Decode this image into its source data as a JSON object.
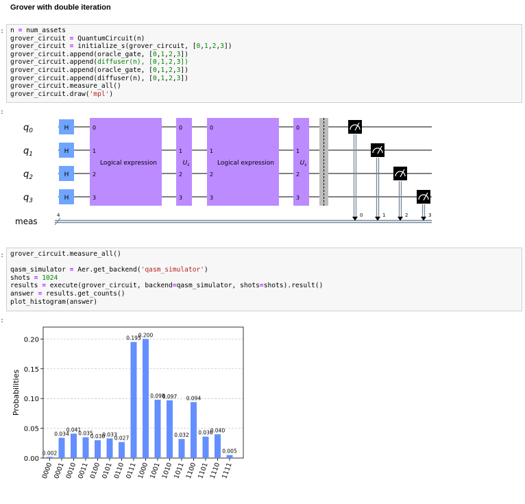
{
  "heading": "Grover with double iteration",
  "prompts": {
    "in": ":",
    "out": ":"
  },
  "cell1": {
    "lines": [
      [
        {
          "t": "n "
        },
        {
          "t": "=",
          "c": "op"
        },
        {
          "t": " num_assets"
        }
      ],
      [
        {
          "t": "grover_circuit "
        },
        {
          "t": "=",
          "c": "op"
        },
        {
          "t": " QuantumCircuit(n)"
        }
      ],
      [
        {
          "t": "grover_circuit "
        },
        {
          "t": "=",
          "c": "op"
        },
        {
          "t": " initialize_s(grover_circuit, ["
        },
        {
          "t": "0",
          "c": "num"
        },
        {
          "t": ","
        },
        {
          "t": "1",
          "c": "num"
        },
        {
          "t": ","
        },
        {
          "t": "2",
          "c": "num"
        },
        {
          "t": ","
        },
        {
          "t": "3",
          "c": "num"
        },
        {
          "t": "])"
        }
      ],
      [
        {
          "t": "grover_circuit.append(oracle_gate, ["
        },
        {
          "t": "0",
          "c": "num"
        },
        {
          "t": ","
        },
        {
          "t": "1",
          "c": "num"
        },
        {
          "t": ","
        },
        {
          "t": "2",
          "c": "num"
        },
        {
          "t": ","
        },
        {
          "t": "3",
          "c": "num"
        },
        {
          "t": "])"
        }
      ],
      [
        {
          "t": "grover_circuit.append("
        },
        {
          "t": "diffuser(n), [0,1,2,3])",
          "c": "kw"
        }
      ],
      [
        {
          "t": "grover_circuit.append(oracle_gate, ["
        },
        {
          "t": "0",
          "c": "num"
        },
        {
          "t": ","
        },
        {
          "t": "1",
          "c": "num"
        },
        {
          "t": ","
        },
        {
          "t": "2",
          "c": "num"
        },
        {
          "t": ","
        },
        {
          "t": "3",
          "c": "num"
        },
        {
          "t": "])"
        }
      ],
      [
        {
          "t": "grover_circuit.append(diffuser(n), ["
        },
        {
          "t": "0",
          "c": "num"
        },
        {
          "t": ","
        },
        {
          "t": "1",
          "c": "num"
        },
        {
          "t": ","
        },
        {
          "t": "2",
          "c": "num"
        },
        {
          "t": ","
        },
        {
          "t": "3",
          "c": "num"
        },
        {
          "t": "])"
        }
      ],
      [
        {
          "t": "grover_circuit.measure_all()"
        }
      ],
      [
        {
          "t": "grover_circuit.draw("
        },
        {
          "t": "'mpl'",
          "c": "str"
        },
        {
          "t": ")"
        }
      ]
    ]
  },
  "cell2": {
    "lines": [
      [
        {
          "t": "grover_circuit.measure_all()"
        }
      ],
      [
        {
          "t": ""
        }
      ],
      [
        {
          "t": "qasm_simulator "
        },
        {
          "t": "=",
          "c": "op"
        },
        {
          "t": " Aer.get_backend("
        },
        {
          "t": "'qasm_simulator'",
          "c": "str"
        },
        {
          "t": ")"
        }
      ],
      [
        {
          "t": "shots "
        },
        {
          "t": "=",
          "c": "op"
        },
        {
          "t": " "
        },
        {
          "t": "1024",
          "c": "num"
        }
      ],
      [
        {
          "t": "results "
        },
        {
          "t": "=",
          "c": "op"
        },
        {
          "t": " execute(grover_circuit, backend"
        },
        {
          "t": "=",
          "c": "op"
        },
        {
          "t": "qasm_simulator, shots"
        },
        {
          "t": "=",
          "c": "op"
        },
        {
          "t": "shots).result()"
        }
      ],
      [
        {
          "t": "answer "
        },
        {
          "t": "=",
          "c": "op"
        },
        {
          "t": " results.get_counts()"
        }
      ],
      [
        {
          "t": "plot_histogram(answer)"
        }
      ]
    ]
  },
  "circuit": {
    "qubits": [
      "q0",
      "q1",
      "q2",
      "q3"
    ],
    "classical_register": "meas",
    "classical_width": "4",
    "hadamard_label": "H",
    "oracle_label": "Logical expression",
    "diffuser_label": "U",
    "diffuser_sub": "s",
    "pin_labels": [
      "0",
      "1",
      "2",
      "3"
    ],
    "measure_bits": [
      "0",
      "1",
      "2",
      "3"
    ],
    "colors": {
      "h": "#6fa4ff",
      "oracle": "#bb8bff",
      "barrier": "#bdbdbd",
      "measure": "#000000",
      "wire": "#000000",
      "creg": "#778899"
    }
  },
  "chart_data": {
    "type": "bar",
    "categories": [
      "0000",
      "0001",
      "0010",
      "0011",
      "0100",
      "0101",
      "0110",
      "0111",
      "1000",
      "1001",
      "1010",
      "1011",
      "1100",
      "1101",
      "1110",
      "1111"
    ],
    "tick_labels": [
      "0000",
      "0001",
      "0010",
      "0011",
      "0100",
      "0101",
      "0110",
      "0111",
      "1000",
      "1001",
      "1010",
      "1011",
      "1100",
      "1101",
      "1110",
      "1111"
    ],
    "values": [
      0.002,
      0.034,
      0.041,
      0.035,
      0.03,
      0.033,
      0.027,
      0.195,
      0.2,
      0.098,
      0.097,
      0.032,
      0.094,
      0.036,
      0.04,
      0.005
    ],
    "value_labels": [
      "0.002",
      "0.034",
      "0.041",
      "0.035",
      "0.030",
      "0.033",
      "0.027",
      "0.195",
      "0.200",
      "0.098",
      "0.097",
      "0.032",
      "0.094",
      "0.036",
      "0.040",
      "0.005"
    ],
    "ylabel": "Probabilities",
    "ylim": [
      0,
      0.22
    ],
    "yticks": [
      0.0,
      0.05,
      0.1,
      0.15,
      0.2
    ],
    "ytick_labels": [
      "0.00",
      "0.05",
      "0.10",
      "0.15",
      "0.20"
    ],
    "grid": true,
    "bar_color": "#648fff"
  }
}
